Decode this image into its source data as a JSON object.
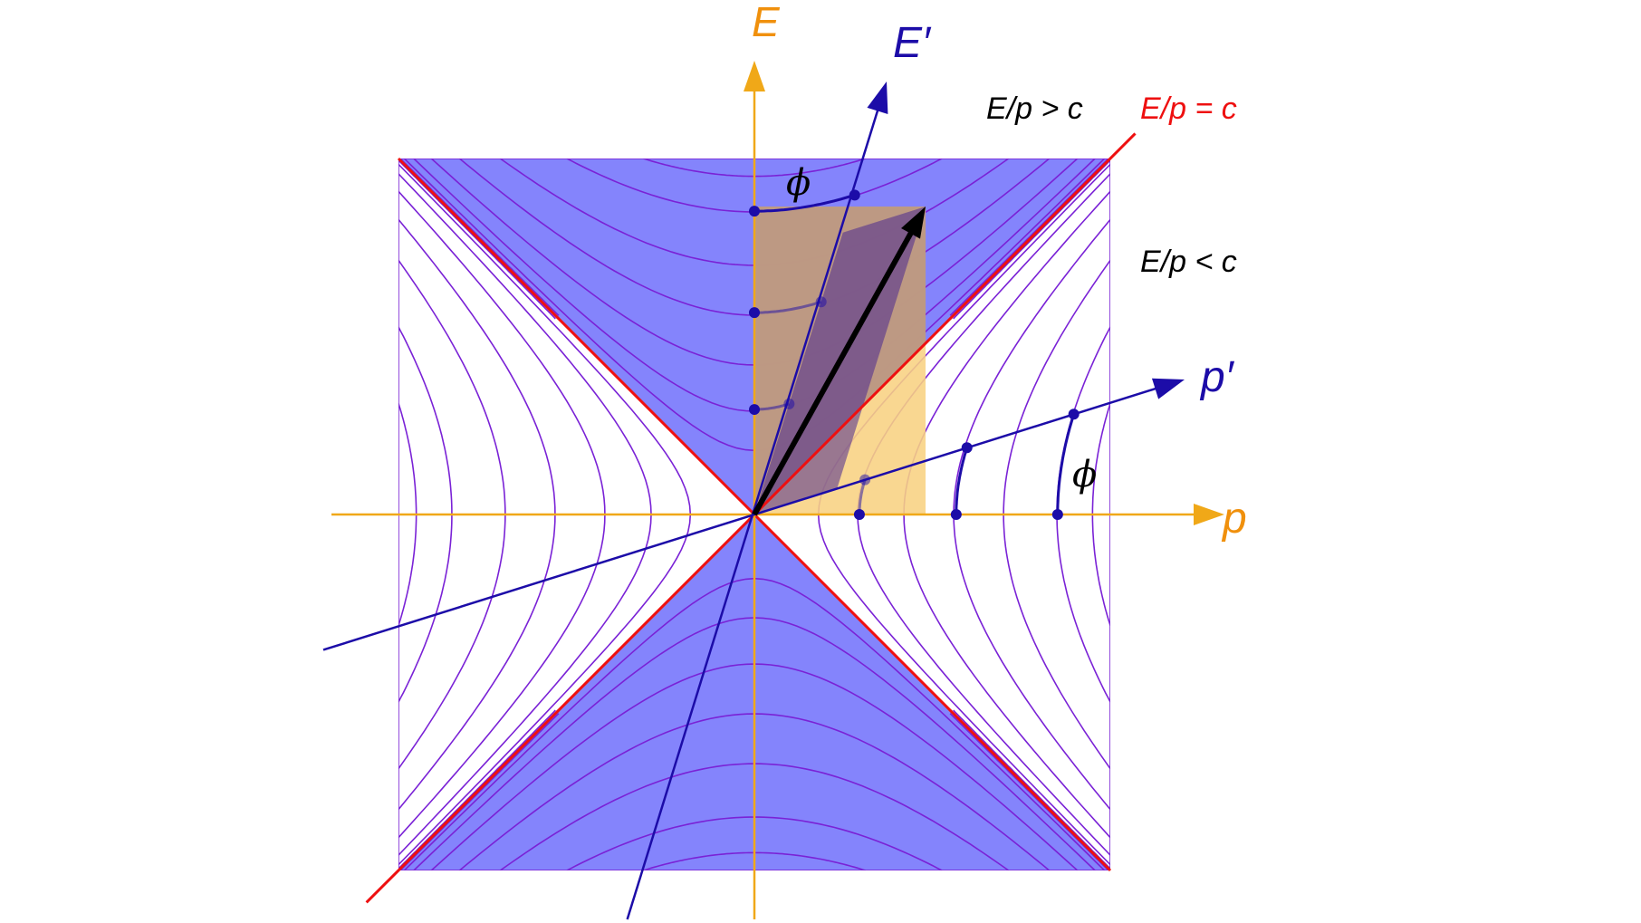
{
  "labels": {
    "E_axis": "E",
    "E_prime_axis": "E′",
    "p_axis": "p",
    "p_prime_axis": "p′",
    "phi_top": "ϕ",
    "phi_right": "ϕ",
    "region_above": "E/p > c",
    "light_line": "E/p = c",
    "region_below": "E/p < c"
  },
  "colors": {
    "axis_orange": "#f0a818",
    "label_orange": "#f0900c",
    "boost_blue": "#1c0ca8",
    "light_red": "#ee1010",
    "timelike_fill": "#8484fc",
    "hyperbola": "#7a22d6",
    "rect_fill": "#f8d282",
    "rect_fill_overlap": "#b89482",
    "parallelogram": "#4a2890",
    "vector": "#000000"
  }
}
